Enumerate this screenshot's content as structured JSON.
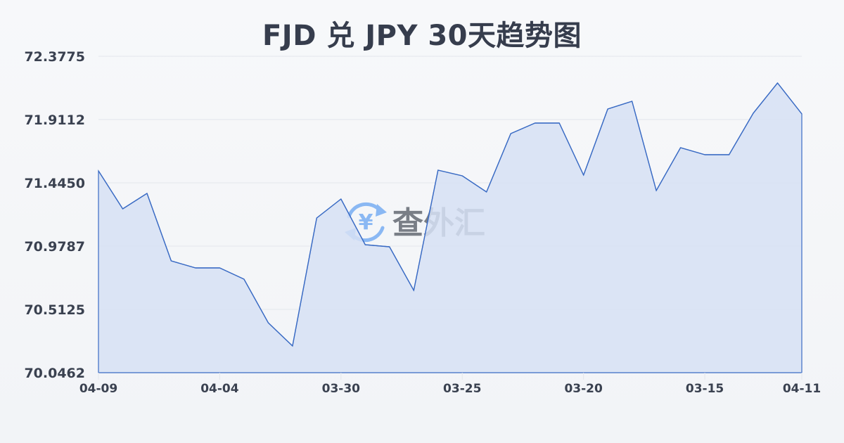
{
  "title": "FJD 兑 JPY 30天趋势图",
  "watermark": {
    "icon": "yen-exchange-icon",
    "text": "查外汇"
  },
  "colors": {
    "line": "#3a6bc4",
    "fill": "#d6e0f5",
    "grid": "#e3e6ec",
    "text": "#3a4150",
    "watermark_icon": "#7fb0f0",
    "watermark_text": "#6e737c"
  },
  "chart_data": {
    "type": "area",
    "title": "FJD 兑 JPY 30天趋势图",
    "xlabel": "",
    "ylabel": "",
    "ylim": [
      70.0462,
      72.3775
    ],
    "yticks": [
      "72.3775",
      "71.9112",
      "71.4450",
      "70.9787",
      "70.5125",
      "70.0462"
    ],
    "xtick_labels": [
      {
        "index": 0,
        "label": "04-09"
      },
      {
        "index": 5,
        "label": "04-04"
      },
      {
        "index": 10,
        "label": "03-30"
      },
      {
        "index": 15,
        "label": "03-25"
      },
      {
        "index": 20,
        "label": "03-20"
      },
      {
        "index": 25,
        "label": "03-15"
      },
      {
        "index": 29,
        "label": "04-11"
      }
    ],
    "grid": true,
    "legend": null,
    "series": [
      {
        "name": "FJD/JPY",
        "values": [
          71.533,
          71.2533,
          71.3673,
          70.8699,
          70.8181,
          70.8181,
          70.7352,
          70.414,
          70.2431,
          71.1859,
          71.3258,
          70.9891,
          70.9735,
          70.6523,
          71.5382,
          71.4968,
          71.3776,
          71.8076,
          71.8853,
          71.8853,
          71.502,
          71.9889,
          72.0459,
          71.388,
          71.704,
          71.6522,
          71.6522,
          71.9579,
          72.1806,
          71.9527
        ]
      }
    ]
  }
}
